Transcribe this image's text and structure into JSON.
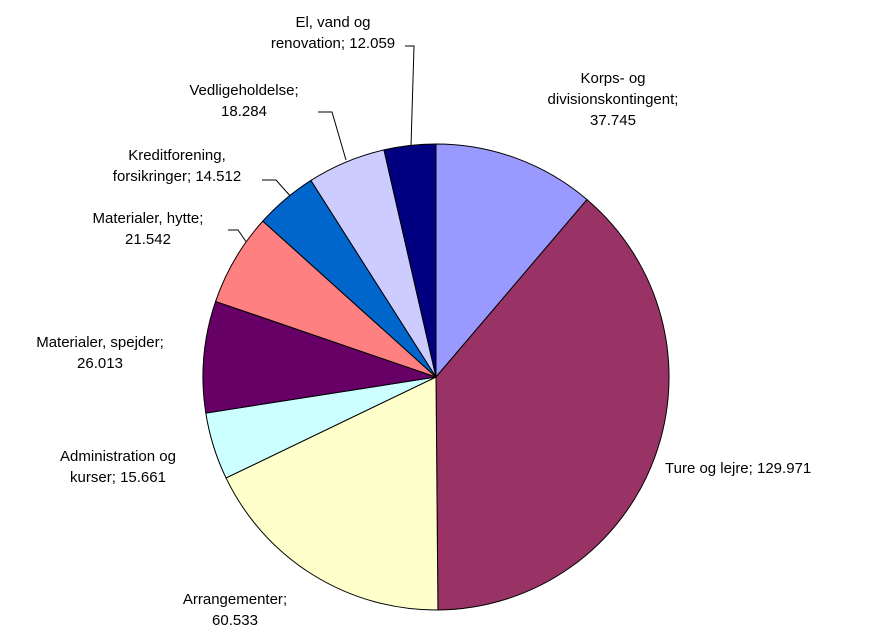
{
  "chart_data": {
    "type": "pie",
    "categories": [
      "Korps- og divisionskontingent",
      "Ture og lejre",
      "Arrangementer",
      "Administration og kurser",
      "Materialer, spejder",
      "Materialer, hytte",
      "Kreditforening, forsikringer",
      "Vedligeholdelse",
      "El, vand og renovation"
    ],
    "values": [
      37745,
      129971,
      60533,
      15661,
      26013,
      21542,
      14512,
      18284,
      12059
    ],
    "value_labels": [
      "37.745",
      "129.971",
      "60.533",
      "15.661",
      "26.013",
      "21.542",
      "14.512",
      "18.284",
      "12.059"
    ],
    "label_separator": "; ",
    "colors": [
      "#9999ff",
      "#993366",
      "#ffffcc",
      "#ccffff",
      "#660066",
      "#ff8080",
      "#0066cc",
      "#ccccff",
      "#000080"
    ]
  }
}
